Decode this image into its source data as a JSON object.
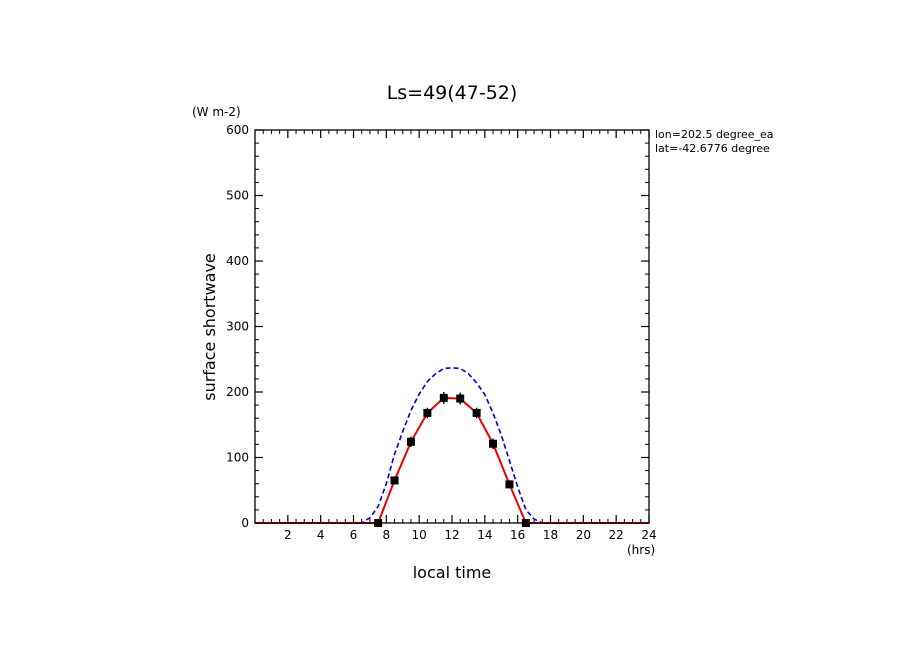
{
  "chart_data": {
    "type": "line",
    "title": "Ls=49(47-52)",
    "xlabel": "local time",
    "ylabel": "surface shortwave",
    "x_unit": "(hrs)",
    "y_unit": "(W m-2)",
    "annotations": [
      "lon=202.5 degree_ea",
      "lat=-42.6776 degree"
    ],
    "xlim": [
      0,
      24
    ],
    "ylim": [
      0,
      600
    ],
    "x_ticks": [
      2,
      4,
      6,
      8,
      10,
      12,
      14,
      16,
      18,
      20,
      22,
      24
    ],
    "y_ticks": [
      0,
      100,
      200,
      300,
      400,
      500,
      600
    ],
    "grid": false,
    "series": [
      {
        "style": "dashed",
        "color": "#0000cc",
        "x": [
          0.5,
          1.5,
          2.5,
          3.5,
          4.5,
          5.5,
          6.5,
          7.0,
          7.5,
          8.0,
          8.5,
          9.0,
          9.5,
          10.0,
          10.5,
          11.0,
          11.5,
          12.0,
          12.5,
          13.0,
          13.5,
          14.0,
          14.5,
          15.0,
          15.5,
          16.0,
          16.5,
          17.0,
          17.5,
          18.5,
          19.5,
          20.5,
          21.5,
          22.5,
          23.5
        ],
        "values": [
          0,
          0,
          0,
          0,
          0,
          0,
          0,
          8,
          25,
          60,
          105,
          140,
          172,
          197,
          216,
          228,
          236,
          237,
          236,
          228,
          214,
          196,
          168,
          134,
          95,
          55,
          20,
          6,
          0,
          0,
          0,
          0,
          0,
          0,
          0
        ]
      },
      {
        "style": "solid",
        "color": "#ee0000",
        "x": [
          0.0,
          1.0,
          2.0,
          3.0,
          4.0,
          5.0,
          6.0,
          7.0,
          7.5,
          8.5,
          9.5,
          10.5,
          11.5,
          12.5,
          13.5,
          14.5,
          15.5,
          16.5,
          17.0,
          18.0,
          19.0,
          20.0,
          21.0,
          22.0,
          23.0,
          24.0
        ],
        "values": [
          0,
          0,
          0,
          0,
          0,
          0,
          0,
          0,
          0,
          65,
          124,
          168,
          191,
          190,
          168,
          121,
          59,
          0,
          0,
          0,
          0,
          0,
          0,
          0,
          0,
          0
        ]
      },
      {
        "style": "markers",
        "color": "#000000",
        "x": [
          7.5,
          8.5,
          9.5,
          10.5,
          11.5,
          12.5,
          13.5,
          14.5,
          15.5,
          16.5
        ],
        "values": [
          0,
          65,
          124,
          168,
          191,
          190,
          168,
          121,
          59,
          0
        ],
        "error": [
          4,
          6,
          8,
          8,
          9,
          9,
          8,
          8,
          6,
          4
        ]
      }
    ]
  }
}
